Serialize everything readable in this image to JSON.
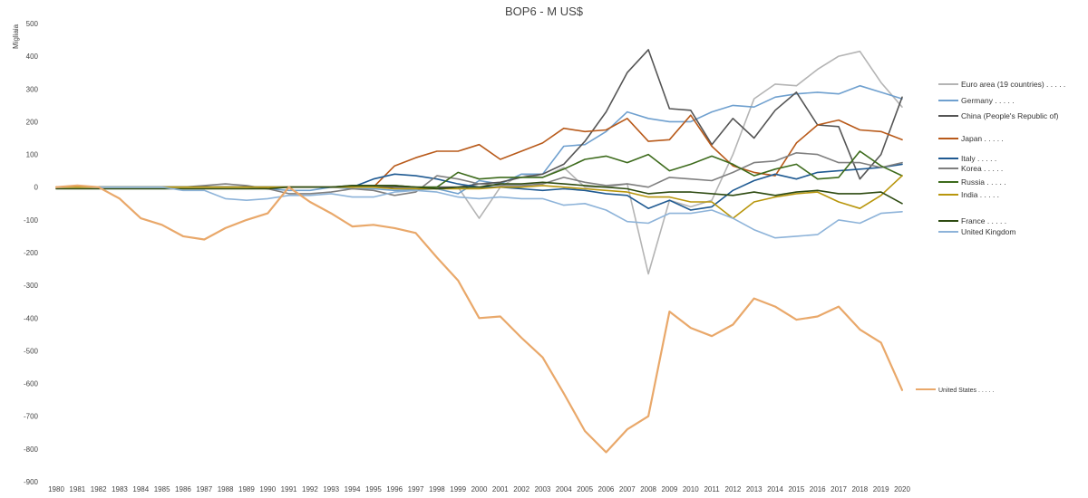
{
  "chart_data": {
    "type": "line",
    "title": "BOP6 - M US$",
    "ylabel": "Migliaia",
    "xlabel": "",
    "ylim": [
      -900,
      500
    ],
    "yticks": [
      500,
      400,
      300,
      200,
      100,
      0,
      -100,
      -200,
      -300,
      -400,
      -500,
      -600,
      -700,
      -800,
      -900
    ],
    "grid": false,
    "x": [
      "1980",
      "1981",
      "1982",
      "1983",
      "1984",
      "1985",
      "1986",
      "1987",
      "1988",
      "1989",
      "1990",
      "1991",
      "1992",
      "1993",
      "1994",
      "1995",
      "1996",
      "1997",
      "1998",
      "1999",
      "2000",
      "2001",
      "2002",
      "2003",
      "2004",
      "2005",
      "2006",
      "2007",
      "2008",
      "2009",
      "2010",
      "2011",
      "2012",
      "2013",
      "2014",
      "2015",
      "2016",
      "2017",
      "2018",
      "2019",
      "2020"
    ],
    "series": [
      {
        "name": "Euro area (19 countries) . . . . .",
        "color": "#b4b4b4",
        "width": 1.6,
        "values": [
          0,
          0,
          0,
          0,
          0,
          0,
          0,
          0,
          0,
          0,
          0,
          0,
          0,
          0,
          0,
          0,
          0,
          0,
          0,
          0,
          -95,
          0,
          40,
          30,
          60,
          0,
          0,
          10,
          -265,
          -40,
          -60,
          -40,
          100,
          270,
          315,
          310,
          360,
          400,
          415,
          320,
          245
        ]
      },
      {
        "name": "Germany . . . . .",
        "color": "#6fa0cf",
        "width": 1.6,
        "values": [
          0,
          0,
          0,
          0,
          0,
          0,
          0,
          0,
          0,
          0,
          -5,
          -10,
          -10,
          0,
          -5,
          -5,
          -10,
          -8,
          -5,
          -20,
          20,
          10,
          40,
          40,
          125,
          130,
          170,
          230,
          210,
          200,
          200,
          230,
          250,
          245,
          275,
          285,
          290,
          285,
          310,
          290,
          270
        ]
      },
      {
        "name": "China (People's Republic of)",
        "color": "#555555",
        "width": 1.6,
        "values": [
          0,
          0,
          0,
          0,
          0,
          0,
          0,
          0,
          0,
          0,
          0,
          0,
          0,
          0,
          0,
          0,
          0,
          0,
          0,
          0,
          10,
          15,
          30,
          40,
          70,
          140,
          230,
          350,
          420,
          240,
          235,
          130,
          210,
          150,
          235,
          290,
          190,
          185,
          25,
          100,
          275
        ]
      },
      {
        "name": "Japan . . . . .",
        "color": "#b85a1a",
        "width": 1.6,
        "values": [
          0,
          0,
          0,
          0,
          0,
          0,
          0,
          0,
          0,
          0,
          0,
          0,
          0,
          0,
          0,
          0,
          65,
          90,
          110,
          110,
          130,
          85,
          110,
          135,
          180,
          170,
          175,
          210,
          140,
          145,
          220,
          125,
          65,
          45,
          35,
          135,
          190,
          205,
          175,
          170,
          145
        ]
      },
      {
        "name": "Italy . . . . .",
        "color": "#1f5a92",
        "width": 1.6,
        "values": [
          0,
          0,
          0,
          0,
          0,
          0,
          0,
          0,
          0,
          0,
          0,
          0,
          0,
          0,
          0,
          25,
          40,
          35,
          25,
          10,
          0,
          0,
          -5,
          -10,
          -5,
          -10,
          -20,
          -25,
          -65,
          -40,
          -70,
          -60,
          -10,
          20,
          40,
          25,
          45,
          50,
          55,
          60,
          70
        ]
      },
      {
        "name": "Korea . . . . .",
        "color": "#7f7f7f",
        "width": 1.6,
        "values": [
          0,
          0,
          0,
          0,
          0,
          0,
          0,
          5,
          10,
          5,
          -5,
          -20,
          -20,
          -15,
          -5,
          -10,
          -25,
          -15,
          35,
          25,
          10,
          5,
          5,
          10,
          30,
          15,
          5,
          10,
          0,
          30,
          25,
          20,
          45,
          75,
          80,
          105,
          100,
          75,
          75,
          60,
          75
        ]
      },
      {
        "name": "Russia . . . . .",
        "color": "#3d6b1c",
        "width": 1.6,
        "values": [
          0,
          0,
          0,
          0,
          0,
          0,
          0,
          0,
          0,
          0,
          0,
          0,
          0,
          0,
          5,
          5,
          5,
          0,
          0,
          45,
          25,
          30,
          30,
          30,
          55,
          85,
          95,
          75,
          100,
          50,
          70,
          95,
          70,
          35,
          55,
          70,
          25,
          30,
          110,
          65,
          35
        ]
      },
      {
        "name": "India . . . . .",
        "color": "#b8960c",
        "width": 1.6,
        "values": [
          0,
          0,
          0,
          0,
          0,
          0,
          0,
          0,
          0,
          0,
          0,
          0,
          0,
          0,
          0,
          0,
          -5,
          -5,
          -5,
          -5,
          -5,
          0,
          0,
          5,
          0,
          -5,
          -10,
          -15,
          -30,
          -30,
          -45,
          -45,
          -95,
          -45,
          -30,
          -20,
          -15,
          -45,
          -65,
          -25,
          35
        ]
      },
      {
        "name": "France . . . . .",
        "color": "#2d4a10",
        "width": 1.6,
        "values": [
          -5,
          -5,
          -5,
          -5,
          -5,
          -5,
          -5,
          -5,
          -5,
          -5,
          -5,
          0,
          0,
          0,
          5,
          5,
          5,
          0,
          -5,
          0,
          0,
          10,
          10,
          15,
          10,
          5,
          0,
          -5,
          -20,
          -15,
          -15,
          -20,
          -25,
          -15,
          -25,
          -15,
          -10,
          -20,
          -20,
          -15,
          -50
        ]
      },
      {
        "name": "United Kingdom",
        "color": "#8db3d9",
        "width": 1.6,
        "values": [
          0,
          5,
          0,
          0,
          0,
          0,
          -10,
          -10,
          -35,
          -40,
          -35,
          -25,
          -25,
          -20,
          -30,
          -30,
          -15,
          -10,
          -15,
          -30,
          -35,
          -30,
          -35,
          -35,
          -55,
          -50,
          -70,
          -105,
          -110,
          -80,
          -80,
          -70,
          -95,
          -130,
          -155,
          -150,
          -145,
          -100,
          -110,
          -80,
          -75
        ]
      },
      {
        "name": "United States . . . . .",
        "color": "#e9a86a",
        "width": 2.2,
        "values": [
          0,
          5,
          0,
          -35,
          -95,
          -115,
          -150,
          -160,
          -125,
          -100,
          -80,
          0,
          -45,
          -80,
          -120,
          -115,
          -125,
          -140,
          -215,
          -285,
          -400,
          -395,
          -460,
          -520,
          -630,
          -745,
          -810,
          -740,
          -700,
          -380,
          -430,
          -455,
          -420,
          -340,
          -365,
          -405,
          -395,
          -365,
          -435,
          -475,
          -620
        ]
      }
    ]
  }
}
